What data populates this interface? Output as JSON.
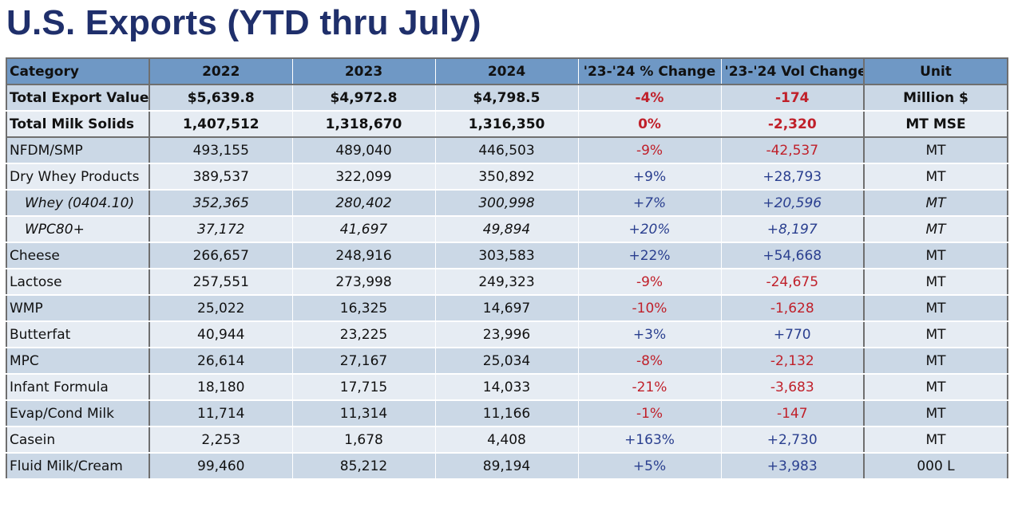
{
  "title": "U.S. Exports (YTD thru July)",
  "table": {
    "headers": [
      "Category",
      "2022",
      "2023",
      "2024",
      "'23-'24 % Change",
      "'23-'24 Vol Change",
      "Unit"
    ],
    "rows": [
      {
        "category": "Total Export Value",
        "y2022": "$5,639.8",
        "y2023": "$4,972.8",
        "y2024": "$4,798.5",
        "pct": "-4%",
        "vol": "-174",
        "unit": "Million $",
        "style": "bold",
        "shade": "a",
        "sign": "neg"
      },
      {
        "category": "Total Milk Solids",
        "y2022": "1,407,512",
        "y2023": "1,318,670",
        "y2024": "1,316,350",
        "pct": "0%",
        "vol": "-2,320",
        "unit": "MT MSE",
        "style": "bold",
        "shade": "b",
        "sign": "neg"
      },
      {
        "category": "NFDM/SMP",
        "y2022": "493,155",
        "y2023": "489,040",
        "y2024": "446,503",
        "pct": "-9%",
        "vol": "-42,537",
        "unit": "MT",
        "style": "normal",
        "shade": "a",
        "sign": "neg"
      },
      {
        "category": "Dry Whey Products",
        "y2022": "389,537",
        "y2023": "322,099",
        "y2024": "350,892",
        "pct": "+9%",
        "vol": "+28,793",
        "unit": "MT",
        "style": "normal",
        "shade": "b",
        "sign": "pos"
      },
      {
        "category": "Whey (0404.10)",
        "y2022": "352,365",
        "y2023": "280,402",
        "y2024": "300,998",
        "pct": "+7%",
        "vol": "+20,596",
        "unit": "MT",
        "style": "italic",
        "shade": "a",
        "sign": "pos"
      },
      {
        "category": "WPC80+",
        "y2022": "37,172",
        "y2023": "41,697",
        "y2024": "49,894",
        "pct": "+20%",
        "vol": "+8,197",
        "unit": "MT",
        "style": "italic",
        "shade": "b",
        "sign": "pos"
      },
      {
        "category": "Cheese",
        "y2022": "266,657",
        "y2023": "248,916",
        "y2024": "303,583",
        "pct": "+22%",
        "vol": "+54,668",
        "unit": "MT",
        "style": "normal",
        "shade": "a",
        "sign": "pos"
      },
      {
        "category": "Lactose",
        "y2022": "257,551",
        "y2023": "273,998",
        "y2024": "249,323",
        "pct": "-9%",
        "vol": "-24,675",
        "unit": "MT",
        "style": "normal",
        "shade": "b",
        "sign": "neg"
      },
      {
        "category": "WMP",
        "y2022": "25,022",
        "y2023": "16,325",
        "y2024": "14,697",
        "pct": "-10%",
        "vol": "-1,628",
        "unit": "MT",
        "style": "normal",
        "shade": "a",
        "sign": "neg"
      },
      {
        "category": "Butterfat",
        "y2022": "40,944",
        "y2023": "23,225",
        "y2024": "23,996",
        "pct": "+3%",
        "vol": "+770",
        "unit": "MT",
        "style": "normal",
        "shade": "b",
        "sign": "pos"
      },
      {
        "category": "MPC",
        "y2022": "26,614",
        "y2023": "27,167",
        "y2024": "25,034",
        "pct": "-8%",
        "vol": "-2,132",
        "unit": "MT",
        "style": "normal",
        "shade": "a",
        "sign": "neg"
      },
      {
        "category": "Infant Formula",
        "y2022": "18,180",
        "y2023": "17,715",
        "y2024": "14,033",
        "pct": "-21%",
        "vol": "-3,683",
        "unit": "MT",
        "style": "normal",
        "shade": "b",
        "sign": "neg"
      },
      {
        "category": "Evap/Cond Milk",
        "y2022": "11,714",
        "y2023": "11,314",
        "y2024": "11,166",
        "pct": "-1%",
        "vol": "-147",
        "unit": "MT",
        "style": "normal",
        "shade": "a",
        "sign": "neg"
      },
      {
        "category": "Casein",
        "y2022": "2,253",
        "y2023": "1,678",
        "y2024": "4,408",
        "pct": "+163%",
        "vol": "+2,730",
        "unit": "MT",
        "style": "normal",
        "shade": "b",
        "sign": "pos"
      },
      {
        "category": "Fluid Milk/Cream",
        "y2022": "99,460",
        "y2023": "85,212",
        "y2024": "89,194",
        "pct": "+5%",
        "vol": "+3,983",
        "unit": "000 L",
        "style": "normal",
        "shade": "a",
        "sign": "pos"
      }
    ]
  },
  "colors": {
    "title": "#1f2f6b",
    "header_bg": "#6f98c5",
    "row_dark": "#cbd8e6",
    "row_light": "#e6ecf3",
    "negative": "#c0202a",
    "positive": "#2a3f8f"
  }
}
